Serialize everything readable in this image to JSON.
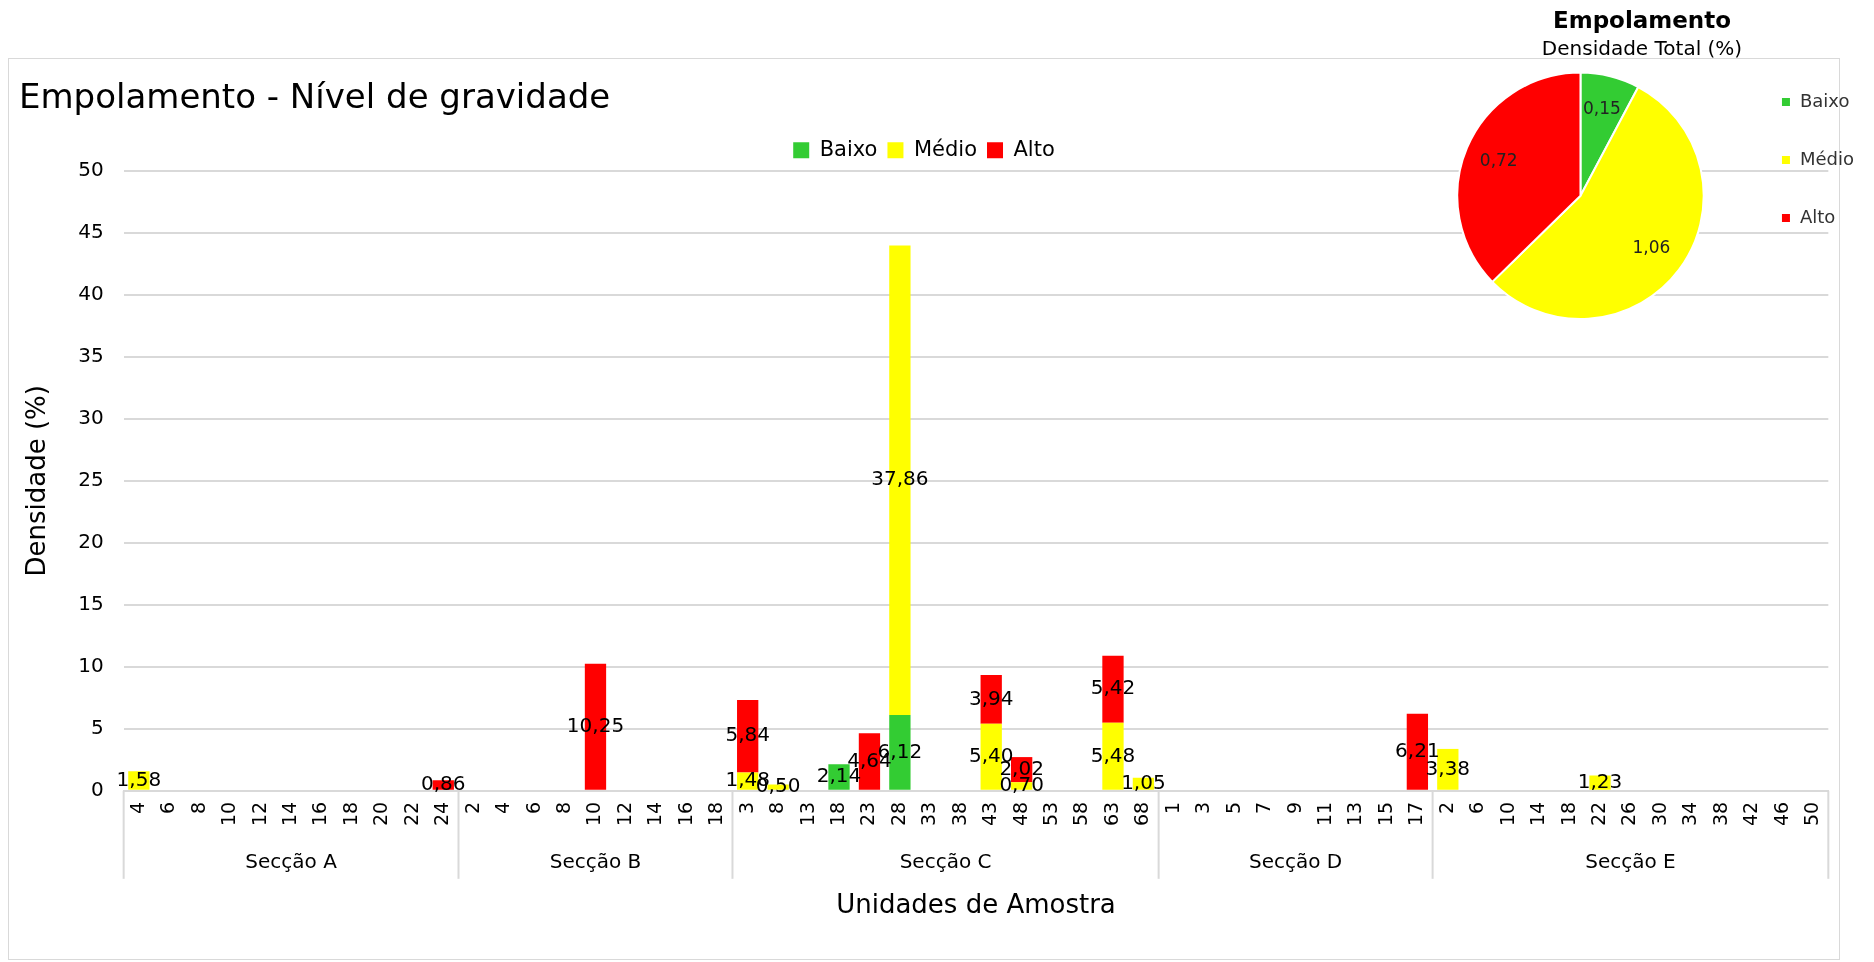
{
  "chart_data": [
    {
      "type": "bar",
      "title": "Empolamento - Nível de gravidade",
      "xlabel": "Unidades de Amostra",
      "ylabel": "Densidade (%)",
      "categories": [
        "4",
        "6",
        "8",
        "10",
        "12",
        "14",
        "16",
        "18",
        "20",
        "22",
        "24",
        "2",
        "4",
        "6",
        "8",
        "10",
        "12",
        "14",
        "16",
        "18",
        "3",
        "8",
        "13",
        "18",
        "23",
        "28",
        "33",
        "38",
        "43",
        "48",
        "53",
        "58",
        "63",
        "68",
        "1",
        "3",
        "5",
        "7",
        "9",
        "11",
        "13",
        "15",
        "17",
        "2",
        "6",
        "10",
        "14",
        "18",
        "22",
        "26",
        "30",
        "34",
        "38",
        "42",
        "46",
        "50"
      ],
      "annotations": [
        "Secção A",
        "Secção B",
        "Secção C",
        "Secção D",
        "Secção E"
      ],
      "stacked": true,
      "ylim": [
        0,
        50
      ],
      "yticks": [
        0,
        5,
        10,
        15,
        20,
        25,
        30,
        35,
        40,
        45,
        50
      ],
      "grid": "y",
      "legend": "top",
      "series": [
        {
          "name": "Baixo",
          "color": "#33cc33",
          "values": [
            null,
            null,
            null,
            null,
            null,
            null,
            null,
            null,
            null,
            null,
            null,
            null,
            null,
            null,
            null,
            null,
            null,
            null,
            null,
            null,
            null,
            null,
            null,
            2.14,
            null,
            6.12,
            null,
            null,
            null,
            null,
            null,
            null,
            null,
            null,
            null,
            null,
            null,
            null,
            null,
            null,
            null,
            null,
            null,
            null,
            null,
            null,
            null,
            null,
            null,
            null,
            null,
            null,
            null,
            null,
            null,
            null
          ],
          "value_labels": [
            null,
            null,
            null,
            null,
            null,
            null,
            null,
            null,
            null,
            null,
            null,
            null,
            null,
            null,
            null,
            null,
            null,
            null,
            null,
            null,
            null,
            null,
            null,
            "2,14",
            null,
            "6,12",
            null,
            null,
            null,
            null,
            null,
            null,
            null,
            null,
            null,
            null,
            null,
            null,
            null,
            null,
            null,
            null,
            null,
            null,
            null,
            null,
            null,
            null,
            null,
            null,
            null,
            null,
            null,
            null,
            null,
            null
          ]
        },
        {
          "name": "Médio",
          "color": "#ffff00",
          "values": [
            1.58,
            null,
            null,
            null,
            null,
            null,
            null,
            null,
            null,
            null,
            null,
            null,
            null,
            null,
            null,
            null,
            null,
            null,
            null,
            null,
            1.48,
            0.5,
            null,
            null,
            null,
            37.86,
            null,
            null,
            5.4,
            0.7,
            null,
            null,
            5.48,
            1.05,
            null,
            null,
            null,
            null,
            null,
            null,
            null,
            null,
            null,
            3.38,
            null,
            null,
            null,
            null,
            1.23,
            null,
            null,
            null,
            null,
            null,
            null,
            null
          ],
          "value_labels": [
            "1,58",
            null,
            null,
            null,
            null,
            null,
            null,
            null,
            null,
            null,
            null,
            null,
            null,
            null,
            null,
            null,
            null,
            null,
            null,
            null,
            "1,48",
            "0,50",
            null,
            null,
            null,
            "37,86",
            null,
            null,
            "5,40",
            "0,70",
            null,
            null,
            "5,48",
            "1,05",
            null,
            null,
            null,
            null,
            null,
            null,
            null,
            null,
            null,
            "3,38",
            null,
            null,
            null,
            null,
            "1,23",
            null,
            null,
            null,
            null,
            null,
            null,
            null
          ]
        },
        {
          "name": "Alto",
          "color": "#ff0000",
          "values": [
            null,
            null,
            null,
            null,
            null,
            null,
            null,
            null,
            null,
            null,
            0.86,
            null,
            null,
            null,
            null,
            10.25,
            null,
            null,
            null,
            null,
            5.84,
            null,
            null,
            null,
            4.64,
            null,
            null,
            null,
            3.94,
            2.02,
            null,
            null,
            5.42,
            null,
            null,
            null,
            null,
            null,
            null,
            null,
            null,
            null,
            6.21,
            null,
            null,
            null,
            null,
            null,
            null,
            null,
            null,
            null,
            null,
            null,
            null,
            null
          ],
          "value_labels": [
            null,
            null,
            null,
            null,
            null,
            null,
            null,
            null,
            null,
            null,
            "0,86",
            null,
            null,
            null,
            null,
            "10,25",
            null,
            null,
            null,
            null,
            "5,84",
            null,
            null,
            null,
            "4,64",
            null,
            null,
            null,
            "3,94",
            "2,02",
            null,
            null,
            "5,42",
            null,
            null,
            null,
            null,
            null,
            null,
            null,
            null,
            null,
            "6,21",
            null,
            null,
            null,
            null,
            null,
            null,
            null,
            null,
            null,
            null,
            null,
            null,
            null
          ]
        }
      ]
    },
    {
      "type": "pie",
      "title": "Empolamento",
      "subtitle": "Densidade Total (%)",
      "categories": [
        "Baixo",
        "Médio",
        "Alto"
      ],
      "values": [
        0.15,
        1.06,
        0.72
      ],
      "value_labels": [
        "0,15",
        "1,06",
        "0,72"
      ],
      "colors": [
        "#33cc33",
        "#ffff00",
        "#ff0000"
      ],
      "legend": "right"
    }
  ]
}
